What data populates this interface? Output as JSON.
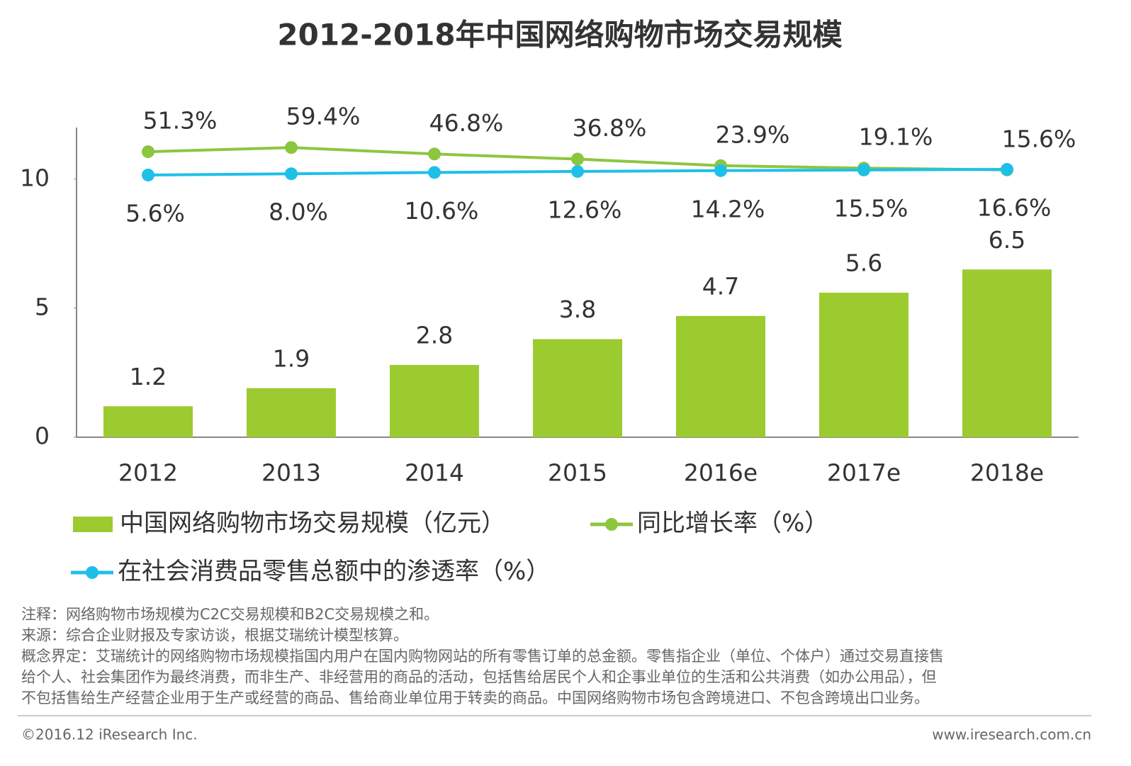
{
  "chart_data": {
    "type": "bar",
    "title": "2012-2018年中国网络购物市场交易规模",
    "categories": [
      "2012",
      "2013",
      "2014",
      "2015",
      "2016e",
      "2017e",
      "2018e"
    ],
    "ylim": [
      0,
      12
    ],
    "yticks": [
      0,
      5,
      10
    ],
    "series": [
      {
        "name": "中国网络购物市场交易规模（亿元）",
        "type": "bar",
        "color": "#9ccb2f",
        "values": [
          1.2,
          1.9,
          2.8,
          3.8,
          4.7,
          5.6,
          6.5
        ]
      },
      {
        "name": "同比增长率（%）",
        "type": "line",
        "axis": "y2",
        "color": "#8cc63f",
        "values": [
          51.3,
          59.4,
          46.8,
          36.8,
          23.9,
          19.1,
          15.6
        ],
        "value_labels": [
          "51.3%",
          "59.4%",
          "46.8%",
          "36.8%",
          "23.9%",
          "19.1%",
          "15.6%"
        ]
      },
      {
        "name": "在社会消费品零售总额中的渗透率（%）",
        "type": "line",
        "axis": "y2",
        "color": "#1ec0e8",
        "values": [
          5.6,
          8.0,
          10.6,
          12.6,
          14.2,
          15.5,
          16.6
        ],
        "value_labels": [
          "5.6%",
          "8.0%",
          "10.6%",
          "12.6%",
          "14.2%",
          "15.5%",
          "16.6%"
        ]
      }
    ]
  },
  "notes": [
    "注释：网络购物市场规模为C2C交易规模和B2C交易规模之和。",
    "来源：综合企业财报及专家访谈，根据艾瑞统计模型核算。",
    "概念界定：艾瑞统计的网络购物市场规模指国内用户在国内购物网站的所有零售订单的总金额。零售指企业（单位、个体户）通过交易直接售",
    "给个人、社会集团作为最终消费，而非生产、非经营用的商品的活动，包括售给居民个人和企事业单位的生活和公共消费（如办公用品），但",
    "不包括售给生产经营企业用于生产或经营的商品、售给商业单位用于转卖的商品。中国网络购物市场包含跨境进口、不包含跨境出口业务。"
  ],
  "footer": {
    "left": "©2016.12 iResearch Inc.",
    "right": "www.iresearch.com.cn"
  }
}
